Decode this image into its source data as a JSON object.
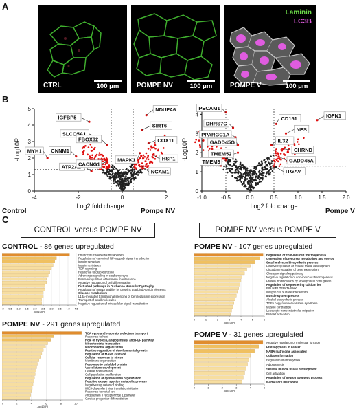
{
  "panel_a": {
    "letter": "A",
    "legend": {
      "laminin": "Laminin",
      "lc3b": "LC3B",
      "laminin_color": "#6ddb4a",
      "lc3b_color": "#e05ce0"
    },
    "images": [
      {
        "condition": "CTRL",
        "scale": "100 μm"
      },
      {
        "condition": "POMPE NV",
        "scale": "100 μm"
      },
      {
        "condition": "POMPE V",
        "scale": "100 μm"
      }
    ]
  },
  "panel_b": {
    "letter": "B",
    "volcano_left": {
      "ylabel": "-Log10P",
      "xlabel": "Log2 fold change",
      "xticks": [
        "-4",
        "-2",
        "0",
        "2"
      ],
      "yticks": [
        "0",
        "1",
        "2",
        "3",
        "4",
        "5"
      ],
      "left_group": "Control",
      "right_group": "Pompe NV",
      "genes": [
        "MYH1",
        "IGFBP5",
        "SLCO5A1",
        "CNNM1",
        "ATP2A1",
        "FBOX32",
        "CACNG1",
        "NDUFA6",
        "SIRT6",
        "COX11",
        "MAPK1",
        "HSP1",
        "NCAM1"
      ]
    },
    "volcano_right": {
      "ylabel": "-Log10P",
      "xlabel": "Log2 fold change",
      "xticks": [
        "-1.0",
        "-0.5",
        "0.0",
        "0.5",
        "1.0",
        "1.5",
        "2.0"
      ],
      "yticks": [
        "0",
        "1",
        "2",
        "3",
        "4"
      ],
      "right_group": "Pompe V",
      "genes": [
        "PECAM1",
        "DHRS7C",
        "PPARGC1A",
        "GADD45G",
        "TMEM52",
        "TMEM3",
        "CD151",
        "NES",
        "IL32",
        "CHRND",
        "GADD45A",
        "ITGAV",
        "IGFN1"
      ]
    }
  },
  "panel_c": {
    "letter": "C",
    "heading_left": "CONTROL versus POMPE NV",
    "heading_right": "POMPE NV versus POMPE V",
    "charts": [
      {
        "group": "CONTROL",
        "count_text": " - 86 genes upregulated",
        "xlabel": "-log10(P)",
        "xticks": [
          "0.0",
          "0.5",
          "1.0",
          "1.5",
          "2.0",
          "2.5",
          "3.0",
          "3.5",
          "4.0",
          "4.5"
        ],
        "terms": [
          "Enterocyte cholesterol metabolism",
          "Regulation of canonical NF-kappaB signal transduction",
          "Insulin secretion",
          "Insulin resistance",
          "TOR signaling",
          "Response to glucocorticoid",
          "Adrenergic signaling in cardiomyocyte",
          "Positive regulation of telomere maintenance",
          "Negative regulation of cell differentiation",
          "Disturbed pathways in Duchenne Muscular Dystrophy",
          "Regulation of mRNA stability by proteins that bind Au-rich elements",
          "Glucose metabolism",
          "L13a-mediated translational silencing of Ceruloplasmin expression",
          "Transport of small molecules",
          "Negative regulation of intracellular signal transduction"
        ],
        "bold": [
          false,
          false,
          false,
          false,
          false,
          false,
          false,
          false,
          false,
          true,
          false,
          true,
          false,
          false,
          false
        ]
      },
      {
        "group": "POMPE NV",
        "count_text": " - 107 genes upregulated",
        "xlabel": "-log10(P)",
        "xticks": [
          "0",
          "1",
          "2",
          "3",
          "4",
          "5",
          "6"
        ],
        "terms": [
          "Regulation of cold-induced thermogenesis",
          "Generation of precursor metabolites and energy",
          "Small molecule biosynthetic process",
          "Positive regulation of muscle tissue development",
          "Circadian regulation of gene expression",
          "Glucagon signaling pathway",
          "Negative regulation of cold-induced thermogenesis",
          "Protein modifications by small protein conjugation",
          "Regulation of sequestering calcium ion",
          "PID HIF1 TFPATHWAY",
          "Integrin cell surface interactions",
          "Muscle system process",
          "Alcohol biosynthetic process",
          "TGFb copy number variation syndrome",
          "Muscle contraction",
          "Leucocyte transendothelial migration",
          "Platelet activation"
        ],
        "bold": [
          true,
          true,
          true,
          false,
          false,
          false,
          false,
          false,
          true,
          false,
          false,
          true,
          false,
          false,
          false,
          false,
          false
        ]
      },
      {
        "group": "POMPE NV",
        "count_text": " - 291 genes upregulated",
        "xlabel": "-log10(P)",
        "xticks": [
          "0",
          "2",
          "4",
          "6",
          "8",
          "10"
        ],
        "terms": [
          "TCA cycle and respiratory electron transport",
          "Response to heat",
          "Role of hypoxia, angiogenesis, and FGF pathway",
          "Mitochondrial translation",
          "Mitochondrial organization",
          "Positive regulation of developmental growth",
          "Regulation of MAPK cascade",
          "Cellular response to stress",
          "Membrane organization",
          "Response to unfolded protein",
          "Vasculature development",
          "Cellular homeostasis",
          "Cell population proliferation",
          "Regulation of cytoskeleton organization",
          "Reactive oxygen species metabolic process",
          "Negative regulation of binding",
          "IRES-dependent viral translation initiation",
          "Response to metal ion",
          "Angiotensin II receptor type 1 pathway",
          "Cardiac progenitor differentiation"
        ],
        "bold": [
          true,
          false,
          true,
          true,
          true,
          true,
          true,
          true,
          false,
          true,
          true,
          false,
          false,
          true,
          true,
          false,
          false,
          false,
          false,
          false
        ]
      },
      {
        "group": "POMPE V",
        "count_text": " - 31 genes upregulated",
        "xlabel": "-log10(P)",
        "xticks": [
          "0",
          "1",
          "2",
          "3",
          "4",
          "5"
        ],
        "terms": [
          "Negative regulation of molecular function",
          "Proteoglycans in cancer",
          "NABA matrisome associated",
          "Collagen formation",
          "Regulation of endocytosis",
          "Adipogenesis",
          "Skeletal muscle tissue development",
          "Cell activation",
          "Regulation of neuron apoptotic process",
          "NABA Core matrisome"
        ],
        "bold": [
          false,
          true,
          true,
          true,
          false,
          false,
          true,
          false,
          true,
          true
        ]
      }
    ]
  },
  "chart_data": [
    {
      "type": "bar",
      "title": "CONTROL - 86 genes upregulated",
      "xlabel": "-log10(P)",
      "orientation": "horizontal",
      "xlim": [
        0,
        4.5
      ],
      "categories": [
        "Enterocyte cholesterol metabolism",
        "Regulation of canonical NF-kappaB signal transduction",
        "Insulin secretion",
        "Insulin resistance",
        "TOR signaling",
        "Response to glucocorticoid",
        "Adrenergic signaling in cardiomyocyte",
        "Positive regulation of telomere maintenance",
        "Negative regulation of cell differentiation",
        "Disturbed pathways in Duchenne Muscular Dystrophy",
        "Regulation of mRNA stability by proteins that bind Au-rich elements",
        "Glucose metabolism",
        "L13a-mediated translational silencing of Ceruloplasmin expression",
        "Transport of small molecules",
        "Negative regulation of intracellular signal transduction"
      ],
      "values": [
        4.1,
        3.3,
        3.2,
        3.1,
        3.0,
        2.9,
        2.8,
        2.7,
        2.7,
        2.6,
        2.6,
        2.5,
        2.5,
        2.4,
        2.4
      ]
    },
    {
      "type": "bar",
      "title": "POMPE NV - 107 genes upregulated",
      "xlabel": "-log10(P)",
      "orientation": "horizontal",
      "xlim": [
        0,
        6
      ],
      "categories": [
        "Regulation of cold-induced thermogenesis",
        "Generation of precursor metabolites and energy",
        "Small molecule biosynthetic process",
        "Positive regulation of muscle tissue development",
        "Circadian regulation of gene expression",
        "Glucagon signaling pathway",
        "Negative regulation of cold-induced thermogenesis",
        "Protein modifications by small protein conjugation",
        "Regulation of sequestering calcium ion",
        "PID HIF1 TFPATHWAY",
        "Integrin cell surface interactions",
        "Muscle system process",
        "Alcohol biosynthetic process",
        "TGFb copy number variation syndrome",
        "Muscle contraction",
        "Leucocyte transendothelial migration",
        "Platelet activation"
      ],
      "values": [
        5.9,
        5.6,
        5.2,
        4.8,
        4.5,
        4.3,
        4.1,
        4.0,
        3.9,
        3.8,
        3.7,
        3.6,
        3.5,
        3.4,
        3.3,
        3.2,
        3.1
      ]
    },
    {
      "type": "bar",
      "title": "POMPE NV - 291 genes upregulated",
      "xlabel": "-log10(P)",
      "orientation": "horizontal",
      "xlim": [
        0,
        11
      ],
      "categories": [
        "TCA cycle and respiratory electron transport",
        "Response to heat",
        "Role of hypoxia, angiogenesis, and FGF pathway",
        "Mitochondrial translation",
        "Mitochondrial organization",
        "Positive regulation of developmental growth",
        "Regulation of MAPK cascade",
        "Cellular response to stress",
        "Membrane organization",
        "Response to unfolded protein",
        "Vasculature development",
        "Cellular homeostasis",
        "Cell population proliferation",
        "Regulation of cytoskeleton organization",
        "Reactive oxygen species metabolic process",
        "Negative regulation of binding",
        "IRES-dependent viral translation initiation",
        "Response to metal ion",
        "Angiotensin II receptor type 1 pathway",
        "Cardiac progenitor differentiation"
      ],
      "values": [
        10.8,
        7.0,
        6.6,
        6.2,
        5.9,
        5.6,
        5.4,
        5.2,
        5.0,
        4.8,
        4.7,
        4.6,
        4.5,
        4.4,
        4.3,
        4.2,
        4.1,
        4.0,
        3.9,
        3.8
      ]
    },
    {
      "type": "bar",
      "title": "POMPE V - 31 genes upregulated",
      "xlabel": "-log10(P)",
      "orientation": "horizontal",
      "xlim": [
        0,
        5
      ],
      "categories": [
        "Negative regulation of molecular function",
        "Proteoglycans in cancer",
        "NABA matrisome associated",
        "Collagen formation",
        "Regulation of endocytosis",
        "Adipogenesis",
        "Skeletal muscle tissue development",
        "Cell activation",
        "Regulation of neuron apoptotic process",
        "NABA Core matrisome"
      ],
      "values": [
        4.9,
        4.6,
        4.3,
        4.0,
        3.9,
        3.8,
        3.7,
        3.6,
        3.5,
        3.4
      ]
    }
  ]
}
